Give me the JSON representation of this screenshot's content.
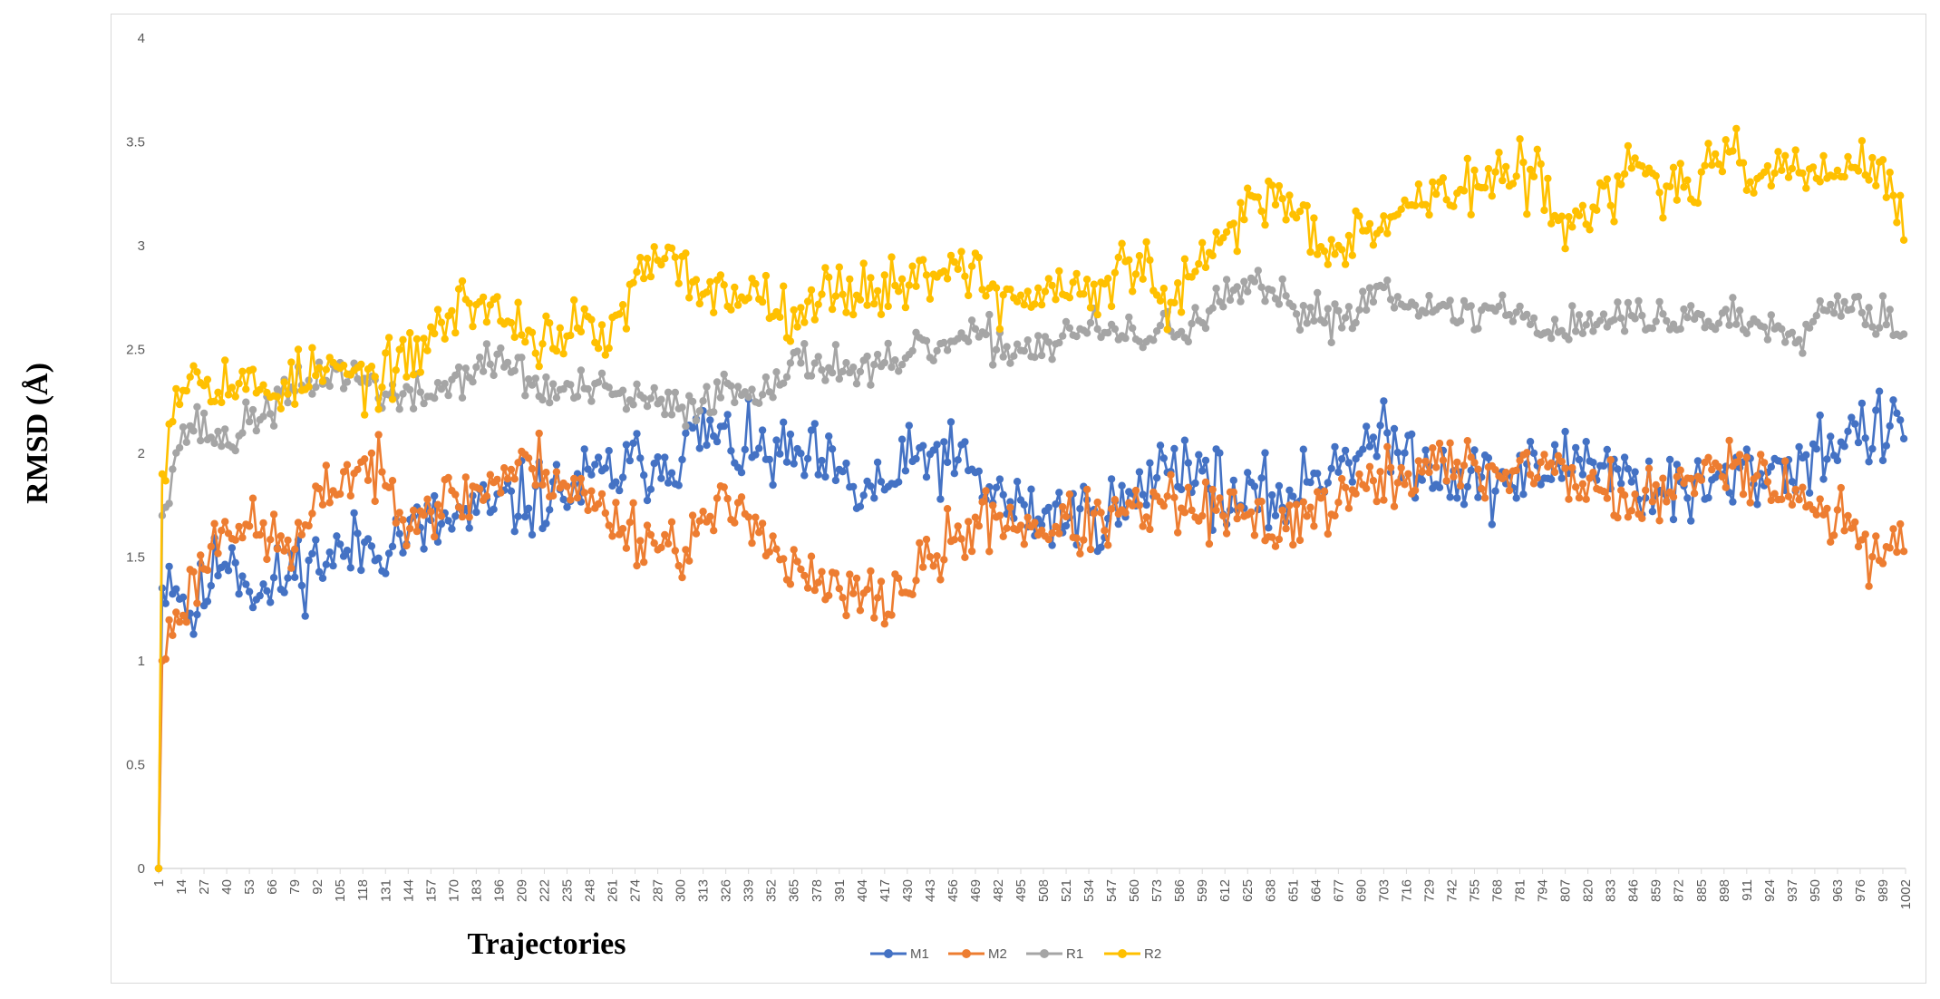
{
  "chart_data": {
    "type": "line",
    "title": "",
    "xlabel": "Trajectories",
    "ylabel": "RMSD (Å)",
    "ylim": [
      0,
      4
    ],
    "yticks": [
      "0",
      "0.5",
      "1",
      "1.5",
      "2",
      "2.5",
      "3",
      "3.5",
      "4"
    ],
    "xlim": [
      1,
      1002
    ],
    "x_tick_start": 1,
    "x_tick_step": 13,
    "x_tick_last_label": "1002",
    "grid": false,
    "legend_position": "bottom",
    "series": [
      {
        "name": "M1",
        "color": "#4472C4",
        "anchors": [
          [
            1,
            0
          ],
          [
            3,
            1.35
          ],
          [
            8,
            1.45
          ],
          [
            20,
            1.2
          ],
          [
            40,
            1.55
          ],
          [
            60,
            1.3
          ],
          [
            80,
            1.45
          ],
          [
            100,
            1.5
          ],
          [
            120,
            1.55
          ],
          [
            140,
            1.6
          ],
          [
            160,
            1.65
          ],
          [
            180,
            1.7
          ],
          [
            200,
            1.75
          ],
          [
            230,
            1.8
          ],
          [
            260,
            1.9
          ],
          [
            280,
            1.95
          ],
          [
            300,
            2.0
          ],
          [
            313,
            2.1
          ],
          [
            340,
            2.0
          ],
          [
            380,
            1.95
          ],
          [
            400,
            1.8
          ],
          [
            420,
            1.85
          ],
          [
            440,
            2.0
          ],
          [
            460,
            1.95
          ],
          [
            480,
            1.8
          ],
          [
            500,
            1.7
          ],
          [
            530,
            1.7
          ],
          [
            560,
            1.75
          ],
          [
            580,
            2.0
          ],
          [
            600,
            1.9
          ],
          [
            620,
            1.75
          ],
          [
            650,
            1.8
          ],
          [
            680,
            2.0
          ],
          [
            700,
            2.05
          ],
          [
            730,
            1.95
          ],
          [
            760,
            1.85
          ],
          [
            790,
            1.9
          ],
          [
            820,
            2.0
          ],
          [
            850,
            1.85
          ],
          [
            880,
            1.8
          ],
          [
            910,
            1.9
          ],
          [
            940,
            1.95
          ],
          [
            970,
            2.1
          ],
          [
            1002,
            2.1
          ]
        ],
        "noise": 0.18,
        "seed": 11
      },
      {
        "name": "M2",
        "color": "#ED7D31",
        "anchors": [
          [
            1,
            0
          ],
          [
            3,
            1.0
          ],
          [
            10,
            1.2
          ],
          [
            20,
            1.35
          ],
          [
            40,
            1.7
          ],
          [
            60,
            1.6
          ],
          [
            80,
            1.55
          ],
          [
            100,
            1.85
          ],
          [
            120,
            1.95
          ],
          [
            140,
            1.75
          ],
          [
            160,
            1.75
          ],
          [
            180,
            1.8
          ],
          [
            200,
            1.9
          ],
          [
            220,
            1.95
          ],
          [
            250,
            1.75
          ],
          [
            280,
            1.6
          ],
          [
            300,
            1.55
          ],
          [
            320,
            1.7
          ],
          [
            340,
            1.75
          ],
          [
            360,
            1.45
          ],
          [
            380,
            1.35
          ],
          [
            400,
            1.3
          ],
          [
            420,
            1.3
          ],
          [
            440,
            1.45
          ],
          [
            460,
            1.6
          ],
          [
            480,
            1.7
          ],
          [
            500,
            1.65
          ],
          [
            530,
            1.65
          ],
          [
            560,
            1.7
          ],
          [
            580,
            1.75
          ],
          [
            610,
            1.7
          ],
          [
            640,
            1.65
          ],
          [
            670,
            1.75
          ],
          [
            700,
            1.85
          ],
          [
            730,
            1.95
          ],
          [
            760,
            1.9
          ],
          [
            790,
            1.95
          ],
          [
            820,
            1.85
          ],
          [
            850,
            1.75
          ],
          [
            880,
            1.85
          ],
          [
            900,
            2.0
          ],
          [
            930,
            1.85
          ],
          [
            960,
            1.7
          ],
          [
            980,
            1.55
          ],
          [
            1002,
            1.55
          ]
        ],
        "noise": 0.15,
        "seed": 23
      },
      {
        "name": "R1",
        "color": "#A5A5A5",
        "anchors": [
          [
            1,
            0
          ],
          [
            3,
            1.7
          ],
          [
            10,
            2.0
          ],
          [
            20,
            2.15
          ],
          [
            40,
            2.05
          ],
          [
            60,
            2.2
          ],
          [
            80,
            2.3
          ],
          [
            100,
            2.4
          ],
          [
            120,
            2.35
          ],
          [
            140,
            2.25
          ],
          [
            160,
            2.3
          ],
          [
            180,
            2.4
          ],
          [
            200,
            2.45
          ],
          [
            220,
            2.3
          ],
          [
            250,
            2.3
          ],
          [
            280,
            2.25
          ],
          [
            300,
            2.2
          ],
          [
            320,
            2.3
          ],
          [
            340,
            2.3
          ],
          [
            360,
            2.4
          ],
          [
            380,
            2.45
          ],
          [
            400,
            2.4
          ],
          [
            420,
            2.4
          ],
          [
            440,
            2.5
          ],
          [
            470,
            2.55
          ],
          [
            500,
            2.5
          ],
          [
            530,
            2.6
          ],
          [
            560,
            2.55
          ],
          [
            580,
            2.6
          ],
          [
            600,
            2.65
          ],
          [
            625,
            2.8
          ],
          [
            650,
            2.7
          ],
          [
            680,
            2.65
          ],
          [
            700,
            2.8
          ],
          [
            720,
            2.75
          ],
          [
            740,
            2.65
          ],
          [
            770,
            2.7
          ],
          [
            800,
            2.6
          ],
          [
            830,
            2.65
          ],
          [
            860,
            2.65
          ],
          [
            900,
            2.65
          ],
          [
            940,
            2.6
          ],
          [
            965,
            2.75
          ],
          [
            990,
            2.65
          ],
          [
            1002,
            2.6
          ]
        ],
        "noise": 0.1,
        "seed": 37
      },
      {
        "name": "R2",
        "color": "#FFC000",
        "anchors": [
          [
            1,
            0
          ],
          [
            3,
            1.9
          ],
          [
            10,
            2.3
          ],
          [
            20,
            2.4
          ],
          [
            40,
            2.35
          ],
          [
            60,
            2.3
          ],
          [
            80,
            2.35
          ],
          [
            100,
            2.4
          ],
          [
            120,
            2.35
          ],
          [
            140,
            2.4
          ],
          [
            160,
            2.6
          ],
          [
            180,
            2.75
          ],
          [
            200,
            2.65
          ],
          [
            220,
            2.55
          ],
          [
            240,
            2.6
          ],
          [
            260,
            2.55
          ],
          [
            280,
            2.9
          ],
          [
            300,
            2.9
          ],
          [
            320,
            2.75
          ],
          [
            340,
            2.8
          ],
          [
            360,
            2.7
          ],
          [
            380,
            2.75
          ],
          [
            400,
            2.8
          ],
          [
            420,
            2.8
          ],
          [
            440,
            2.85
          ],
          [
            460,
            2.95
          ],
          [
            480,
            2.75
          ],
          [
            500,
            2.75
          ],
          [
            520,
            2.8
          ],
          [
            540,
            2.75
          ],
          [
            560,
            2.95
          ],
          [
            580,
            2.7
          ],
          [
            600,
            2.9
          ],
          [
            630,
            3.25
          ],
          [
            650,
            3.2
          ],
          [
            670,
            3.0
          ],
          [
            690,
            3.1
          ],
          [
            710,
            3.15
          ],
          [
            730,
            3.25
          ],
          [
            760,
            3.3
          ],
          [
            790,
            3.35
          ],
          [
            800,
            3.15
          ],
          [
            830,
            3.2
          ],
          [
            850,
            3.4
          ],
          [
            870,
            3.25
          ],
          [
            900,
            3.4
          ],
          [
            930,
            3.35
          ],
          [
            960,
            3.35
          ],
          [
            980,
            3.4
          ],
          [
            1002,
            3.1
          ]
        ],
        "noise": 0.14,
        "seed": 53
      }
    ]
  }
}
